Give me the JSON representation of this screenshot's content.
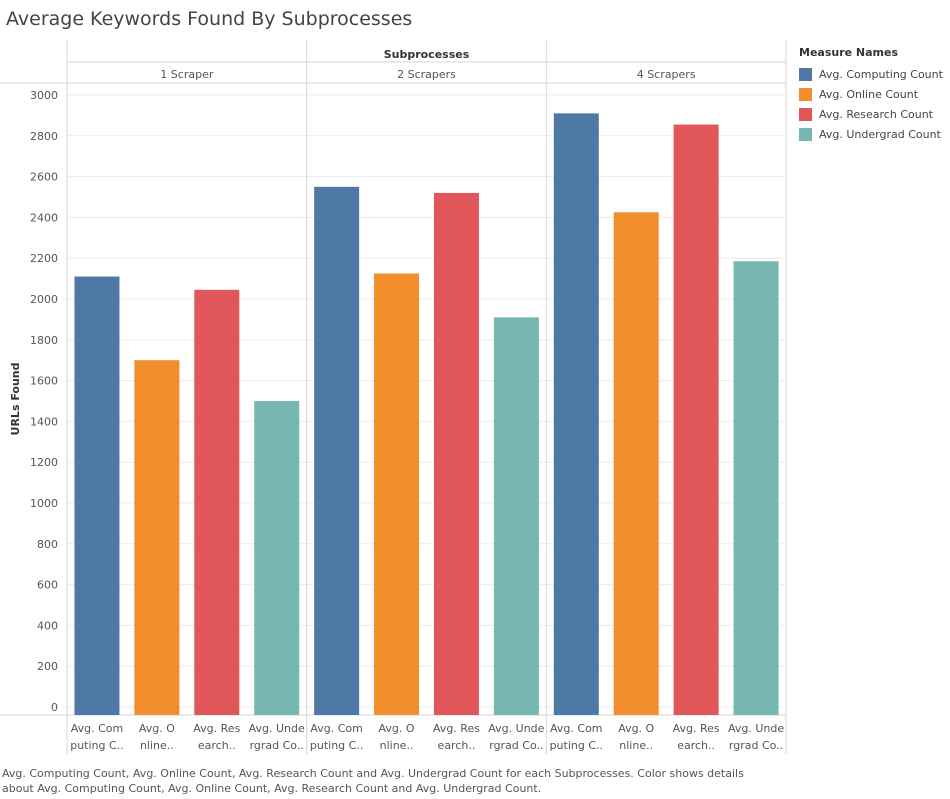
{
  "title": "Average Keywords Found By Subprocesses",
  "caption": "Avg. Computing Count, Avg. Online Count, Avg. Research Count and Avg. Undergrad Count for each Subprocesses.  Color shows details about Avg. Computing Count, Avg. Online Count, Avg. Research Count and Avg. Undergrad Count.",
  "legend": {
    "title": "Measure Names",
    "items": [
      {
        "label": "Avg. Computing Count",
        "color": "#4e79a7"
      },
      {
        "label": "Avg. Online Count",
        "color": "#f28e2b"
      },
      {
        "label": "Avg. Research Count",
        "color": "#e15759"
      },
      {
        "label": "Avg. Undergrad Count",
        "color": "#76b7b2"
      }
    ]
  },
  "chart_data": {
    "type": "bar",
    "column_header": "Subprocesses",
    "groups": [
      "1 Scraper",
      "2 Scrapers",
      "4 Scrapers"
    ],
    "categories": [
      "Avg. Computing Count",
      "Avg. Online Count",
      "Avg. Research Count",
      "Avg. Undergrad Count"
    ],
    "category_tick_labels": [
      [
        "Avg. Com",
        "puting C.."
      ],
      [
        "Avg. O",
        "nline.."
      ],
      [
        "Avg. Res",
        "earch.."
      ],
      [
        "Avg. Unde",
        "rgrad Co.."
      ]
    ],
    "series": [
      {
        "group": "1 Scraper",
        "values": [
          2110,
          1700,
          2045,
          1500
        ]
      },
      {
        "group": "2 Scrapers",
        "values": [
          2550,
          2125,
          2520,
          1910
        ]
      },
      {
        "group": "4 Scrapers",
        "values": [
          2910,
          2425,
          2855,
          2185
        ]
      }
    ],
    "colors": [
      "#4e79a7",
      "#f28e2b",
      "#e15759",
      "#76b7b2"
    ],
    "ylabel": "URLs Found",
    "ylim": [
      0,
      3000
    ],
    "yticks": [
      0,
      200,
      400,
      600,
      800,
      1000,
      1200,
      1400,
      1600,
      1800,
      2000,
      2200,
      2400,
      2600,
      2800,
      3000
    ],
    "grid": true,
    "legend_position": "right"
  }
}
